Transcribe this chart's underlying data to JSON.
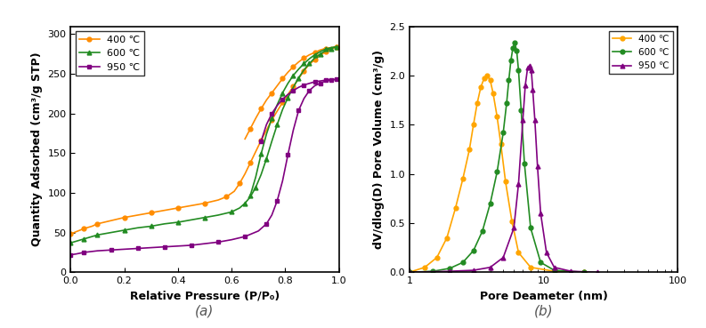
{
  "chart_a": {
    "caption": "(a)",
    "xlabel": "Relative Pressure (P/P₀)",
    "ylabel": "Quantity Adsorbed (cm³/g STP)",
    "ylim": [
      0,
      310
    ],
    "xlim": [
      0.0,
      1.0
    ],
    "yticks": [
      0,
      50,
      100,
      150,
      200,
      250,
      300
    ],
    "xticks": [
      0.0,
      0.2,
      0.4,
      0.6,
      0.8,
      1.0
    ],
    "series": [
      {
        "label": "400 ℃",
        "color": "#FF8C00",
        "marker": "o",
        "adsorption_x": [
          0.0,
          0.02,
          0.05,
          0.08,
          0.1,
          0.15,
          0.2,
          0.25,
          0.3,
          0.35,
          0.4,
          0.45,
          0.5,
          0.55,
          0.58,
          0.61,
          0.63,
          0.65,
          0.67,
          0.69,
          0.71,
          0.73,
          0.75,
          0.77,
          0.79,
          0.81,
          0.83,
          0.85,
          0.87,
          0.89,
          0.91,
          0.93,
          0.95,
          0.97,
          0.99
        ],
        "adsorption_y": [
          48,
          51,
          55,
          58,
          61,
          65,
          69,
          72,
          75,
          78,
          81,
          84,
          87,
          91,
          95,
          102,
          112,
          124,
          138,
          152,
          166,
          179,
          192,
          203,
          214,
          224,
          234,
          244,
          254,
          262,
          268,
          273,
          278,
          281,
          284
        ],
        "desorption_x": [
          0.99,
          0.97,
          0.95,
          0.93,
          0.91,
          0.89,
          0.87,
          0.85,
          0.83,
          0.81,
          0.79,
          0.77,
          0.75,
          0.73,
          0.71,
          0.69,
          0.67,
          0.65
        ],
        "desorption_y": [
          284,
          283,
          282,
          280,
          277,
          274,
          270,
          265,
          259,
          252,
          244,
          235,
          226,
          217,
          206,
          194,
          181,
          168
        ]
      },
      {
        "label": "600 ℃",
        "color": "#228B22",
        "marker": "^",
        "adsorption_x": [
          0.0,
          0.02,
          0.05,
          0.08,
          0.1,
          0.15,
          0.2,
          0.25,
          0.3,
          0.35,
          0.4,
          0.45,
          0.5,
          0.55,
          0.6,
          0.63,
          0.65,
          0.67,
          0.69,
          0.71,
          0.73,
          0.75,
          0.77,
          0.79,
          0.81,
          0.83,
          0.85,
          0.87,
          0.89,
          0.91,
          0.93,
          0.95,
          0.97,
          0.99
        ],
        "adsorption_y": [
          37,
          39,
          42,
          45,
          47,
          50,
          53,
          56,
          58,
          61,
          63,
          66,
          69,
          72,
          76,
          81,
          87,
          95,
          107,
          123,
          143,
          165,
          186,
          205,
          220,
          233,
          245,
          255,
          263,
          270,
          275,
          279,
          282,
          284
        ],
        "desorption_x": [
          0.99,
          0.97,
          0.95,
          0.93,
          0.91,
          0.89,
          0.87,
          0.85,
          0.83,
          0.81,
          0.79,
          0.77,
          0.75,
          0.73,
          0.71,
          0.69,
          0.67
        ],
        "desorption_y": [
          284,
          283,
          281,
          278,
          274,
          269,
          263,
          256,
          248,
          238,
          226,
          211,
          194,
          174,
          149,
          120,
          97
        ]
      },
      {
        "label": "950 ℃",
        "color": "#800080",
        "marker": "s",
        "adsorption_x": [
          0.0,
          0.02,
          0.05,
          0.1,
          0.15,
          0.2,
          0.25,
          0.3,
          0.35,
          0.4,
          0.45,
          0.5,
          0.55,
          0.6,
          0.65,
          0.7,
          0.73,
          0.75,
          0.77,
          0.79,
          0.81,
          0.83,
          0.85,
          0.87,
          0.89,
          0.91,
          0.93,
          0.95,
          0.97,
          0.99
        ],
        "adsorption_y": [
          22,
          23,
          25,
          27,
          28,
          29,
          30,
          31,
          32,
          33,
          34,
          36,
          38,
          41,
          45,
          52,
          61,
          72,
          90,
          115,
          148,
          179,
          204,
          219,
          229,
          235,
          238,
          241,
          242,
          243
        ],
        "desorption_x": [
          0.99,
          0.97,
          0.95,
          0.93,
          0.91,
          0.89,
          0.87,
          0.85,
          0.83,
          0.81,
          0.79,
          0.77,
          0.75,
          0.73,
          0.71
        ],
        "desorption_y": [
          243,
          243,
          242,
          241,
          240,
          238,
          236,
          233,
          229,
          224,
          218,
          210,
          200,
          186,
          165
        ]
      }
    ]
  },
  "chart_b": {
    "caption": "(b)",
    "xlabel": "Pore Deameter (nm)",
    "ylabel": "dV/dlog(D) Pore Volume (cm³/g)",
    "ylim": [
      0,
      2.5
    ],
    "xlim": [
      1,
      100
    ],
    "yticks": [
      0.0,
      0.5,
      1.0,
      1.5,
      2.0,
      2.5
    ],
    "series": [
      {
        "label": "400 ℃",
        "color": "#FFA500",
        "marker": "o",
        "x": [
          1.0,
          1.3,
          1.6,
          1.9,
          2.2,
          2.5,
          2.8,
          3.0,
          3.2,
          3.4,
          3.6,
          3.8,
          4.0,
          4.2,
          4.5,
          4.8,
          5.2,
          5.8,
          6.5,
          8.0,
          12.0,
          20.0
        ],
        "y": [
          0.0,
          0.05,
          0.15,
          0.35,
          0.65,
          0.95,
          1.25,
          1.5,
          1.72,
          1.88,
          1.97,
          2.0,
          1.95,
          1.82,
          1.58,
          1.3,
          0.92,
          0.52,
          0.2,
          0.05,
          0.01,
          0.0
        ]
      },
      {
        "label": "600 ℃",
        "color": "#228B22",
        "marker": "o",
        "x": [
          1.0,
          1.5,
          2.0,
          2.5,
          3.0,
          3.5,
          4.0,
          4.5,
          5.0,
          5.3,
          5.5,
          5.7,
          5.9,
          6.1,
          6.3,
          6.5,
          6.8,
          7.2,
          8.0,
          9.5,
          12.0,
          20.0
        ],
        "y": [
          0.0,
          0.01,
          0.04,
          0.1,
          0.22,
          0.42,
          0.7,
          1.02,
          1.42,
          1.72,
          1.95,
          2.15,
          2.28,
          2.33,
          2.25,
          2.05,
          1.65,
          1.1,
          0.45,
          0.1,
          0.02,
          0.0
        ]
      },
      {
        "label": "950 ℃",
        "color": "#800080",
        "marker": "^",
        "x": [
          1.0,
          2.0,
          3.0,
          4.0,
          5.0,
          6.0,
          6.5,
          7.0,
          7.3,
          7.6,
          7.9,
          8.1,
          8.3,
          8.6,
          9.0,
          9.5,
          10.5,
          12.0,
          16.0,
          25.0
        ],
        "y": [
          0.0,
          0.01,
          0.02,
          0.05,
          0.15,
          0.45,
          0.9,
          1.55,
          1.9,
          2.08,
          2.1,
          2.05,
          1.85,
          1.55,
          1.08,
          0.6,
          0.2,
          0.05,
          0.01,
          0.0
        ]
      }
    ]
  }
}
